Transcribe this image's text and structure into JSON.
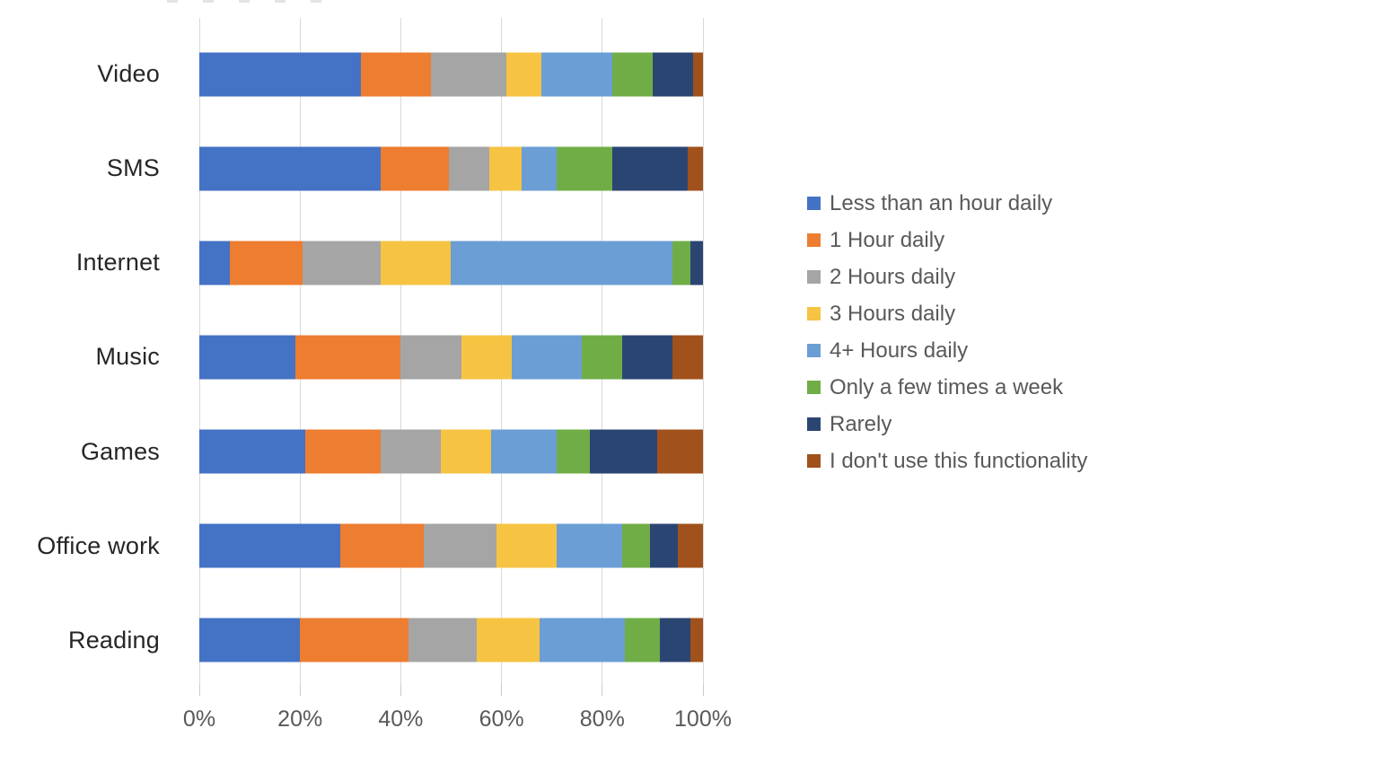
{
  "chart_data": {
    "type": "bar",
    "orientation": "horizontal",
    "stacked": true,
    "stacked_total_percent": 100,
    "title": "",
    "xlabel": "",
    "ylabel": "",
    "grid": true,
    "legend_position": "right",
    "x_axis": {
      "min": 0,
      "max": 100,
      "tick_labels": [
        "0%",
        "20%",
        "40%",
        "60%",
        "80%",
        "100%"
      ],
      "tick_values": [
        0,
        20,
        40,
        60,
        80,
        100
      ]
    },
    "categories": [
      "Video",
      "SMS",
      "Internet",
      "Music",
      "Games",
      "Office work",
      "Reading"
    ],
    "series": [
      {
        "name": "Less than an hour daily",
        "color": "#4472C4",
        "values": [
          32,
          36,
          6,
          19,
          21,
          28,
          20
        ]
      },
      {
        "name": "1 Hour daily",
        "color": "#ED7D31",
        "values": [
          14,
          13.5,
          14.5,
          21,
          15,
          16.5,
          21.5
        ]
      },
      {
        "name": "2 Hours daily",
        "color": "#A5A5A5",
        "values": [
          15,
          8,
          15.5,
          12,
          12,
          14.5,
          13.5
        ]
      },
      {
        "name": "3 Hours daily",
        "color": "#F6C343",
        "values": [
          7,
          6.5,
          14,
          10,
          10,
          12,
          12.5
        ]
      },
      {
        "name": "4+ Hours daily",
        "color": "#6B9ED4",
        "values": [
          14,
          7,
          44,
          14,
          13,
          13,
          17
        ]
      },
      {
        "name": "Only a few times a week",
        "color": "#70AD47",
        "values": [
          8,
          11,
          3.5,
          8,
          6.5,
          5.5,
          7
        ]
      },
      {
        "name": "Rarely",
        "color": "#2B4573",
        "values": [
          8,
          15,
          2.5,
          10,
          13.5,
          5.5,
          6
        ]
      },
      {
        "name": "I don't use this functionality",
        "color": "#A0511C",
        "values": [
          2,
          3,
          0,
          6,
          9,
          5,
          2.5
        ]
      }
    ]
  },
  "colors": {
    "gridline": "#d9d9d9",
    "tick": "#c9c9c9",
    "category_label": "#262626",
    "axis_label": "#595959",
    "legend_label": "#595959",
    "background": "#ffffff"
  }
}
